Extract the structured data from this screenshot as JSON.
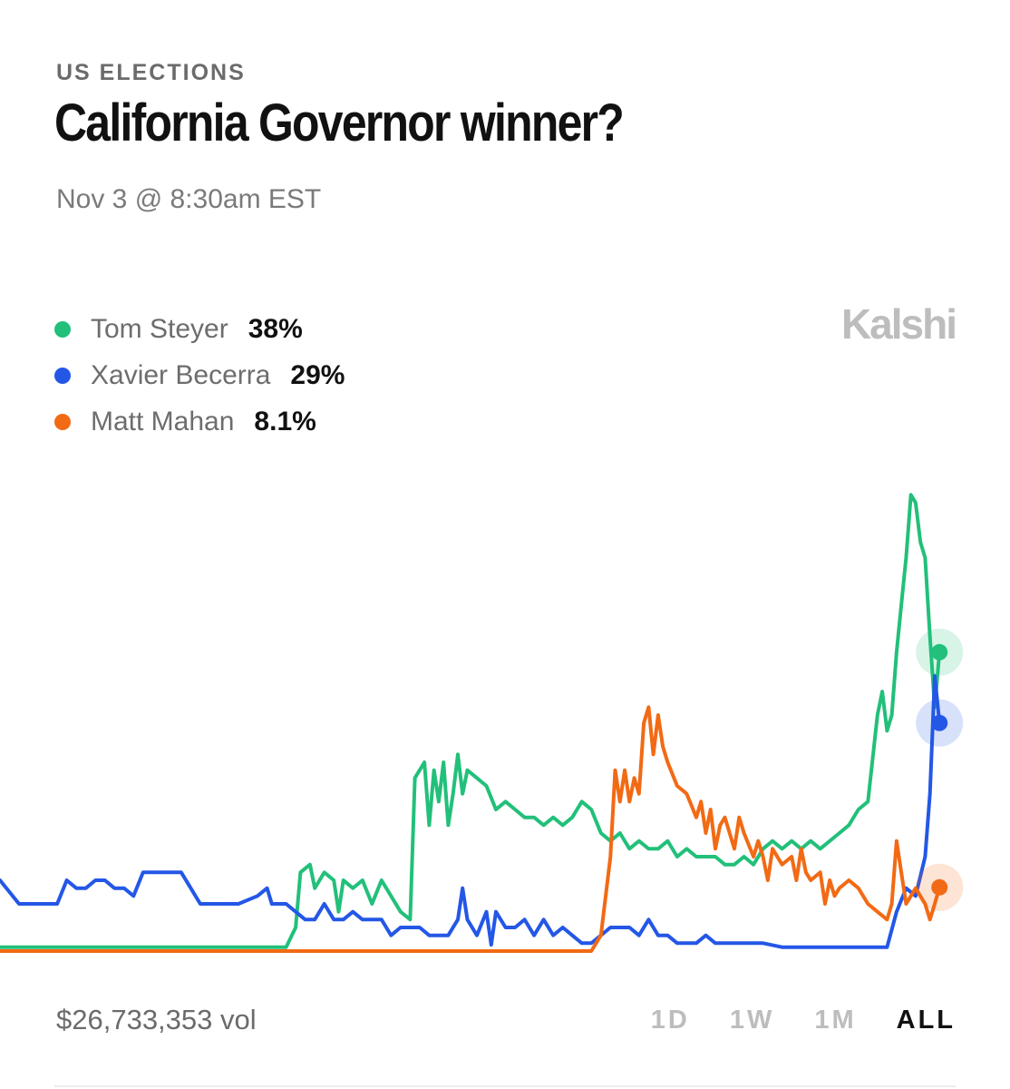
{
  "header": {
    "category": "US ELECTIONS",
    "title": "California Governor winner?",
    "date": "Nov 3 @ 8:30am EST",
    "brand": "Kalshi"
  },
  "legend": [
    {
      "name": "Tom Steyer",
      "value": "38%",
      "color": "#22c07a"
    },
    {
      "name": "Xavier Becerra",
      "value": "29%",
      "color": "#2457e6"
    },
    {
      "name": "Matt Mahan",
      "value": "8.1%",
      "color": "#f26a14"
    }
  ],
  "footer": {
    "volume": "$26,733,353 vol",
    "ranges": [
      "1D",
      "1W",
      "1M",
      "ALL"
    ],
    "active_range": "ALL"
  },
  "chart_data": {
    "type": "line",
    "x_unit": "relative time (0 = start, 100 = latest)",
    "y_unit": "percent chance",
    "ylim": [
      0,
      60
    ],
    "grid": false,
    "axes_visible": false,
    "series": [
      {
        "name": "Tom Steyer",
        "color": "#22c07a",
        "points": [
          [
            0,
            0.5
          ],
          [
            30,
            0.5
          ],
          [
            31,
            3
          ],
          [
            31.5,
            10
          ],
          [
            32.5,
            11
          ],
          [
            33,
            8
          ],
          [
            34,
            10
          ],
          [
            35,
            9
          ],
          [
            35.5,
            5
          ],
          [
            36,
            9
          ],
          [
            37,
            8
          ],
          [
            38,
            9
          ],
          [
            39,
            6
          ],
          [
            40,
            9
          ],
          [
            41,
            7
          ],
          [
            42,
            5
          ],
          [
            43,
            4
          ],
          [
            43.5,
            22
          ],
          [
            44.5,
            24
          ],
          [
            45,
            16
          ],
          [
            45.5,
            23
          ],
          [
            46,
            19
          ],
          [
            46.5,
            24
          ],
          [
            47,
            16
          ],
          [
            47.5,
            20
          ],
          [
            48,
            25
          ],
          [
            48.5,
            20
          ],
          [
            49,
            23
          ],
          [
            50,
            22
          ],
          [
            51,
            21
          ],
          [
            52,
            18
          ],
          [
            53,
            19
          ],
          [
            54,
            18
          ],
          [
            55,
            17
          ],
          [
            56,
            17
          ],
          [
            57,
            16
          ],
          [
            58,
            17
          ],
          [
            59,
            16
          ],
          [
            60,
            17
          ],
          [
            61,
            19
          ],
          [
            62,
            18
          ],
          [
            63,
            15
          ],
          [
            64,
            14
          ],
          [
            65,
            15
          ],
          [
            66,
            13
          ],
          [
            67,
            14
          ],
          [
            68,
            13
          ],
          [
            69,
            13
          ],
          [
            70,
            14
          ],
          [
            71,
            12
          ],
          [
            72,
            13
          ],
          [
            73,
            12
          ],
          [
            74,
            12
          ],
          [
            75,
            12
          ],
          [
            76,
            11
          ],
          [
            77,
            11
          ],
          [
            78,
            12
          ],
          [
            79,
            11
          ],
          [
            80,
            13
          ],
          [
            81,
            14
          ],
          [
            82,
            13
          ],
          [
            83,
            14
          ],
          [
            84,
            13
          ],
          [
            85,
            14
          ],
          [
            86,
            13
          ],
          [
            87,
            14
          ],
          [
            88,
            15
          ],
          [
            89,
            16
          ],
          [
            90,
            18
          ],
          [
            91,
            19
          ],
          [
            92,
            30
          ],
          [
            92.5,
            33
          ],
          [
            93,
            28
          ],
          [
            93.5,
            30
          ],
          [
            94,
            38
          ],
          [
            94.5,
            44
          ],
          [
            95,
            50
          ],
          [
            95.5,
            58
          ],
          [
            96,
            57
          ],
          [
            96.5,
            52
          ],
          [
            97,
            50
          ],
          [
            97.5,
            40
          ],
          [
            98,
            31
          ],
          [
            98.5,
            38
          ]
        ]
      },
      {
        "name": "Xavier Becerra",
        "color": "#2457e6",
        "points": [
          [
            0,
            9
          ],
          [
            2,
            6
          ],
          [
            4,
            6
          ],
          [
            6,
            6
          ],
          [
            7,
            9
          ],
          [
            8,
            8
          ],
          [
            9,
            8
          ],
          [
            10,
            9
          ],
          [
            11,
            9
          ],
          [
            12,
            8
          ],
          [
            13,
            8
          ],
          [
            14,
            7
          ],
          [
            15,
            10
          ],
          [
            16,
            10
          ],
          [
            18,
            10
          ],
          [
            19,
            10
          ],
          [
            20,
            8
          ],
          [
            21,
            6
          ],
          [
            23,
            6
          ],
          [
            25,
            6
          ],
          [
            27,
            7
          ],
          [
            28,
            8
          ],
          [
            28.5,
            6
          ],
          [
            30,
            6
          ],
          [
            31,
            5
          ],
          [
            32,
            4
          ],
          [
            33,
            4
          ],
          [
            34,
            6
          ],
          [
            35,
            4
          ],
          [
            36,
            4
          ],
          [
            37,
            5
          ],
          [
            38,
            4
          ],
          [
            39,
            4
          ],
          [
            40,
            4
          ],
          [
            41,
            2
          ],
          [
            42,
            3
          ],
          [
            43,
            3
          ],
          [
            44,
            3
          ],
          [
            45,
            2
          ],
          [
            46,
            2
          ],
          [
            47,
            2
          ],
          [
            48,
            4
          ],
          [
            48.5,
            8
          ],
          [
            49,
            4
          ],
          [
            50,
            2
          ],
          [
            51,
            5
          ],
          [
            51.5,
            0.8
          ],
          [
            52,
            5
          ],
          [
            53,
            3
          ],
          [
            54,
            3
          ],
          [
            55,
            4
          ],
          [
            56,
            2
          ],
          [
            57,
            4
          ],
          [
            58,
            2
          ],
          [
            59,
            3
          ],
          [
            60,
            2
          ],
          [
            61,
            1
          ],
          [
            62,
            1
          ],
          [
            63,
            2
          ],
          [
            64,
            3
          ],
          [
            65,
            3
          ],
          [
            66,
            3
          ],
          [
            67,
            2
          ],
          [
            68,
            4
          ],
          [
            69,
            2
          ],
          [
            70,
            2
          ],
          [
            71,
            1
          ],
          [
            72,
            1
          ],
          [
            73,
            1
          ],
          [
            74,
            2
          ],
          [
            75,
            1
          ],
          [
            76,
            1
          ],
          [
            78,
            1
          ],
          [
            80,
            1
          ],
          [
            82,
            0.5
          ],
          [
            84,
            0.5
          ],
          [
            86,
            0.5
          ],
          [
            88,
            0.5
          ],
          [
            90,
            0.5
          ],
          [
            92,
            0.5
          ],
          [
            93,
            0.5
          ],
          [
            94,
            5
          ],
          [
            95,
            8
          ],
          [
            96,
            7
          ],
          [
            97,
            12
          ],
          [
            97.5,
            20
          ],
          [
            98,
            35
          ],
          [
            98.5,
            29
          ]
        ]
      },
      {
        "name": "Matt Mahan",
        "color": "#f26a14",
        "points": [
          [
            0,
            0
          ],
          [
            30,
            0
          ],
          [
            40,
            0
          ],
          [
            50,
            0
          ],
          [
            58,
            0
          ],
          [
            62,
            0
          ],
          [
            63,
            2
          ],
          [
            64,
            12
          ],
          [
            64.5,
            23
          ],
          [
            65,
            19
          ],
          [
            65.5,
            23
          ],
          [
            66,
            19
          ],
          [
            66.5,
            22
          ],
          [
            67,
            20
          ],
          [
            67.5,
            29
          ],
          [
            68,
            31
          ],
          [
            68.5,
            25
          ],
          [
            69,
            30
          ],
          [
            69.5,
            26
          ],
          [
            70,
            24
          ],
          [
            71,
            21
          ],
          [
            72,
            20
          ],
          [
            73,
            17
          ],
          [
            73.5,
            19
          ],
          [
            74,
            15
          ],
          [
            74.5,
            18
          ],
          [
            75,
            13
          ],
          [
            75.5,
            16
          ],
          [
            76,
            17
          ],
          [
            77,
            13
          ],
          [
            77.5,
            17
          ],
          [
            78,
            15
          ],
          [
            79,
            12
          ],
          [
            79.5,
            14
          ],
          [
            80,
            12
          ],
          [
            80.5,
            9
          ],
          [
            81,
            13
          ],
          [
            82,
            11
          ],
          [
            83,
            12
          ],
          [
            83.5,
            9
          ],
          [
            84,
            13
          ],
          [
            84.5,
            10
          ],
          [
            85,
            9
          ],
          [
            86,
            10
          ],
          [
            86.5,
            6
          ],
          [
            87,
            9
          ],
          [
            87.5,
            7
          ],
          [
            88,
            8
          ],
          [
            89,
            9
          ],
          [
            90,
            8
          ],
          [
            91,
            6
          ],
          [
            92,
            5
          ],
          [
            93,
            4
          ],
          [
            93.5,
            6
          ],
          [
            94,
            14
          ],
          [
            94.5,
            10
          ],
          [
            95,
            6
          ],
          [
            96,
            8
          ],
          [
            97,
            6
          ],
          [
            97.5,
            4
          ],
          [
            98,
            6
          ],
          [
            98.5,
            8.1
          ]
        ]
      }
    ]
  }
}
